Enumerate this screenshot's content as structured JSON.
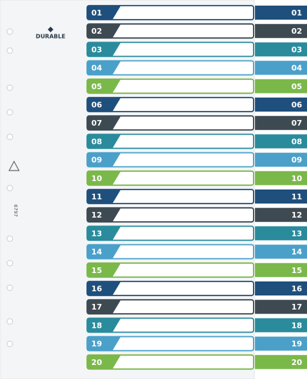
{
  "brand": "DURABLE",
  "code": "6797",
  "tabs": [
    {
      "left": "01",
      "right": "01"
    },
    {
      "left": "02",
      "right": "02"
    },
    {
      "left": "03",
      "right": "03"
    },
    {
      "left": "04",
      "right": "04"
    },
    {
      "left": "05",
      "right": "05"
    },
    {
      "left": "06",
      "right": "06"
    },
    {
      "left": "07",
      "right": "07"
    },
    {
      "left": "08",
      "right": "08"
    },
    {
      "left": "09",
      "right": "09"
    },
    {
      "left": "10",
      "right": "10"
    },
    {
      "left": "11",
      "right": "11"
    },
    {
      "left": "12",
      "right": "12"
    },
    {
      "left": "13",
      "right": "13"
    },
    {
      "left": "14",
      "right": "14"
    },
    {
      "left": "15",
      "right": "15"
    },
    {
      "left": "16",
      "right": "16"
    },
    {
      "left": "17",
      "right": "17"
    },
    {
      "left": "18",
      "right": "18"
    },
    {
      "left": "19",
      "right": "19"
    },
    {
      "left": "20",
      "right": "20"
    }
  ]
}
